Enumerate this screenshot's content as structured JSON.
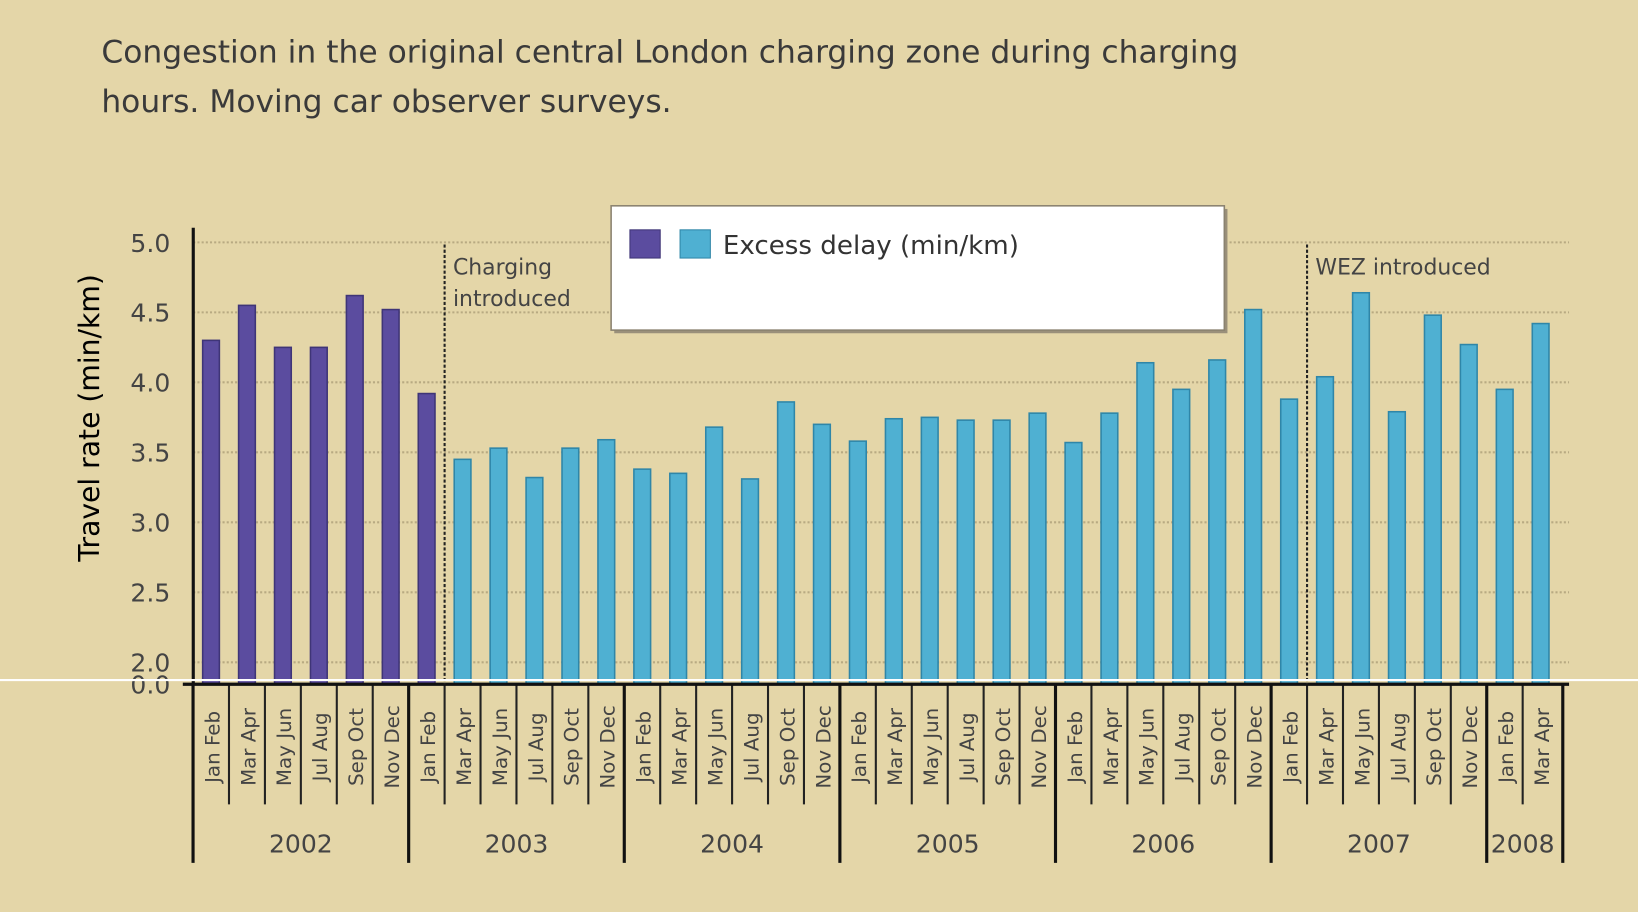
{
  "chart_data": {
    "type": "bar",
    "title_line1": "Congestion in the original central London charging zone during charging",
    "title_line2": "hours. Moving car observer surveys.",
    "ylabel": "Travel rate (min/km)",
    "xlabel": "",
    "ylim": [
      2.0,
      5.0
    ],
    "y_ticks": [
      "5.0",
      "4.5",
      "4.0",
      "3.5",
      "3.0",
      "2.5",
      "2.0",
      "0.0"
    ],
    "axis_break": true,
    "grid": true,
    "legend": {
      "label": "Excess delay (min/km)",
      "placement": "top-center"
    },
    "colors": {
      "before_charging": "#5b4c9f",
      "after_charging": "#4fb0d2",
      "background": "#e4d6a8"
    },
    "annotations": [
      {
        "text_line1": "Charging",
        "text_line2": "introduced",
        "after_index": 6
      },
      {
        "text_line1": "WEZ introduced",
        "text_line2": "",
        "after_index": 30
      }
    ],
    "years": [
      {
        "year": "2002",
        "periods": [
          "Jan Feb",
          "Mar Apr",
          "May Jun",
          "Jul Aug",
          "Sep Oct",
          "Nov Dec"
        ],
        "values": [
          4.3,
          4.55,
          4.25,
          4.25,
          4.62,
          4.52
        ]
      },
      {
        "year": "2003",
        "periods": [
          "Jan Feb",
          "Mar Apr",
          "May Jun",
          "Jul Aug",
          "Sep Oct",
          "Nov Dec"
        ],
        "values": [
          3.92,
          3.45,
          3.53,
          3.32,
          3.53,
          3.59
        ]
      },
      {
        "year": "2004",
        "periods": [
          "Jan Feb",
          "Mar Apr",
          "May Jun",
          "Jul Aug",
          "Sep Oct",
          "Nov Dec"
        ],
        "values": [
          3.38,
          3.35,
          3.68,
          3.31,
          3.86,
          3.7
        ]
      },
      {
        "year": "2005",
        "periods": [
          "Jan Feb",
          "Mar Apr",
          "May Jun",
          "Jul Aug",
          "Sep Oct",
          "Nov Dec"
        ],
        "values": [
          3.58,
          3.74,
          3.75,
          3.73,
          3.73,
          3.78
        ]
      },
      {
        "year": "2006",
        "periods": [
          "Jan Feb",
          "Mar Apr",
          "May Jun",
          "Jul Aug",
          "Sep Oct",
          "Nov Dec"
        ],
        "values": [
          3.57,
          3.78,
          4.14,
          3.95,
          4.16,
          4.52
        ]
      },
      {
        "year": "2007",
        "periods": [
          "Jan Feb",
          "Mar Apr",
          "May Jun",
          "Jul Aug",
          "Sep Oct",
          "Nov Dec"
        ],
        "values": [
          3.88,
          4.04,
          4.64,
          3.79,
          4.48,
          4.27
        ]
      },
      {
        "year": "2008",
        "periods": [
          "Jan Feb",
          "Mar Apr"
        ],
        "values": [
          3.95,
          4.42
        ]
      }
    ]
  }
}
